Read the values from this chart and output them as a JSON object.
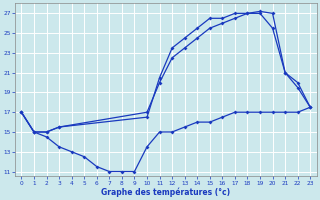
{
  "xlabel": "Graphe des températures (°c)",
  "bg_color": "#cce8ec",
  "grid_color": "#ffffff",
  "line_color": "#1a3abf",
  "ylim": [
    10.5,
    28
  ],
  "xlim": [
    -0.5,
    23.5
  ],
  "yticks": [
    11,
    13,
    15,
    17,
    19,
    21,
    23,
    25,
    27
  ],
  "xticks": [
    0,
    1,
    2,
    3,
    4,
    5,
    6,
    7,
    8,
    9,
    10,
    11,
    12,
    13,
    14,
    15,
    16,
    17,
    18,
    19,
    20,
    21,
    22,
    23
  ],
  "line1_x": [
    0,
    1,
    2,
    3,
    10,
    11,
    12,
    13,
    14,
    15,
    16,
    17,
    18,
    19,
    20,
    21,
    22,
    23
  ],
  "line1_y": [
    17,
    15,
    15,
    15.5,
    16.5,
    20.5,
    23.5,
    24.5,
    25.5,
    26.5,
    26.5,
    27,
    27,
    27.2,
    27,
    21,
    20,
    17.5
  ],
  "line2_x": [
    0,
    1,
    2,
    3,
    10,
    11,
    12,
    13,
    14,
    15,
    16,
    17,
    18,
    19,
    20,
    21,
    22,
    23
  ],
  "line2_y": [
    17,
    15,
    15,
    15.5,
    17,
    20,
    22.5,
    23.5,
    24.5,
    25.5,
    26,
    26.5,
    27,
    27,
    25.5,
    21,
    19.5,
    17.5
  ],
  "line3_x": [
    0,
    1,
    2,
    3,
    4,
    5,
    6,
    7,
    8,
    9,
    10,
    11,
    12,
    13,
    14,
    15,
    16,
    17,
    18,
    19,
    20,
    21,
    22,
    23
  ],
  "line3_y": [
    17,
    15,
    14.5,
    13.5,
    13,
    12.5,
    11.5,
    11,
    11,
    11,
    13.5,
    15,
    15,
    15.5,
    16,
    16,
    16.5,
    17,
    17,
    17,
    17,
    17,
    17,
    17.5
  ]
}
